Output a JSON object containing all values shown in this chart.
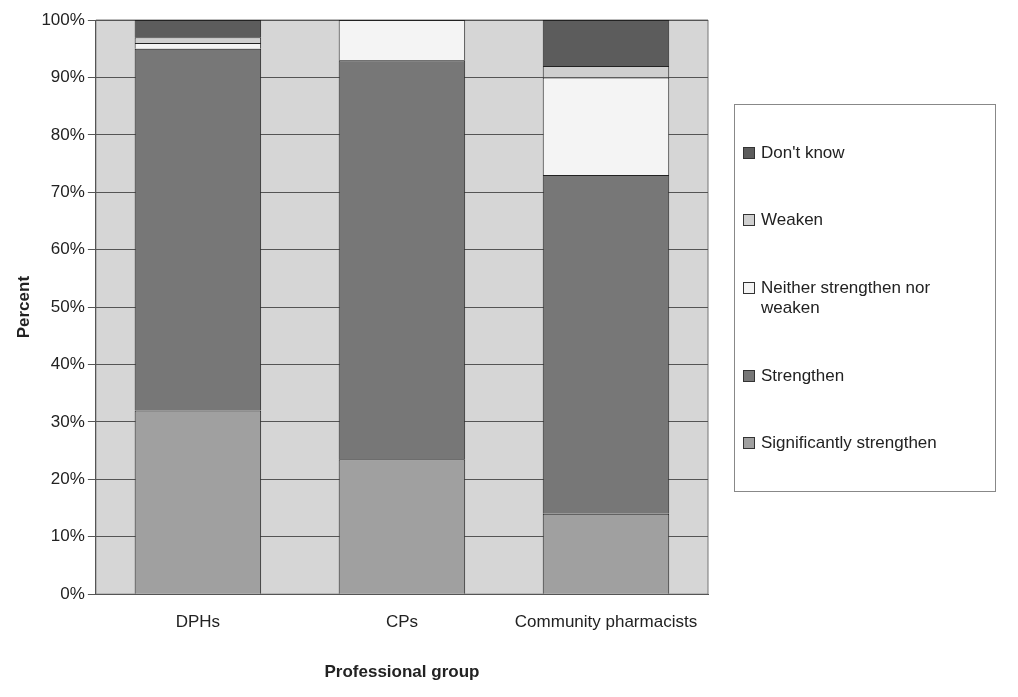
{
  "chart_data": {
    "type": "bar",
    "stacked": true,
    "xlabel": "Professional group",
    "ylabel": "Percent",
    "categories": [
      "DPHs",
      "CPs",
      "Community pharmacists"
    ],
    "series": [
      {
        "name": "Significantly strengthen",
        "color": "#a0a0a0",
        "values": [
          32,
          23.5,
          14
        ]
      },
      {
        "name": "Strengthen",
        "color": "#777777",
        "values": [
          63,
          69.5,
          59
        ]
      },
      {
        "name": "Neither strengthen nor weaken",
        "color": "#f4f4f4",
        "values": [
          1,
          7,
          17
        ]
      },
      {
        "name": "Weaken",
        "color": "#cfcfcf",
        "values": [
          1,
          0,
          2
        ]
      },
      {
        "name": "Don't know",
        "color": "#5c5c5c",
        "values": [
          3,
          0,
          8
        ]
      }
    ],
    "ylim": [
      0,
      100
    ],
    "yticks": [
      {
        "value": 0,
        "label": "0%"
      },
      {
        "value": 10,
        "label": "10%"
      },
      {
        "value": 20,
        "label": "20%"
      },
      {
        "value": 30,
        "label": "30%"
      },
      {
        "value": 40,
        "label": "40%"
      },
      {
        "value": 50,
        "label": "50%"
      },
      {
        "value": 60,
        "label": "60%"
      },
      {
        "value": 70,
        "label": "70%"
      },
      {
        "value": 80,
        "label": "80%"
      },
      {
        "value": 90,
        "label": "90%"
      },
      {
        "value": 100,
        "label": "100%"
      }
    ],
    "grid": "y",
    "legend": "right"
  }
}
